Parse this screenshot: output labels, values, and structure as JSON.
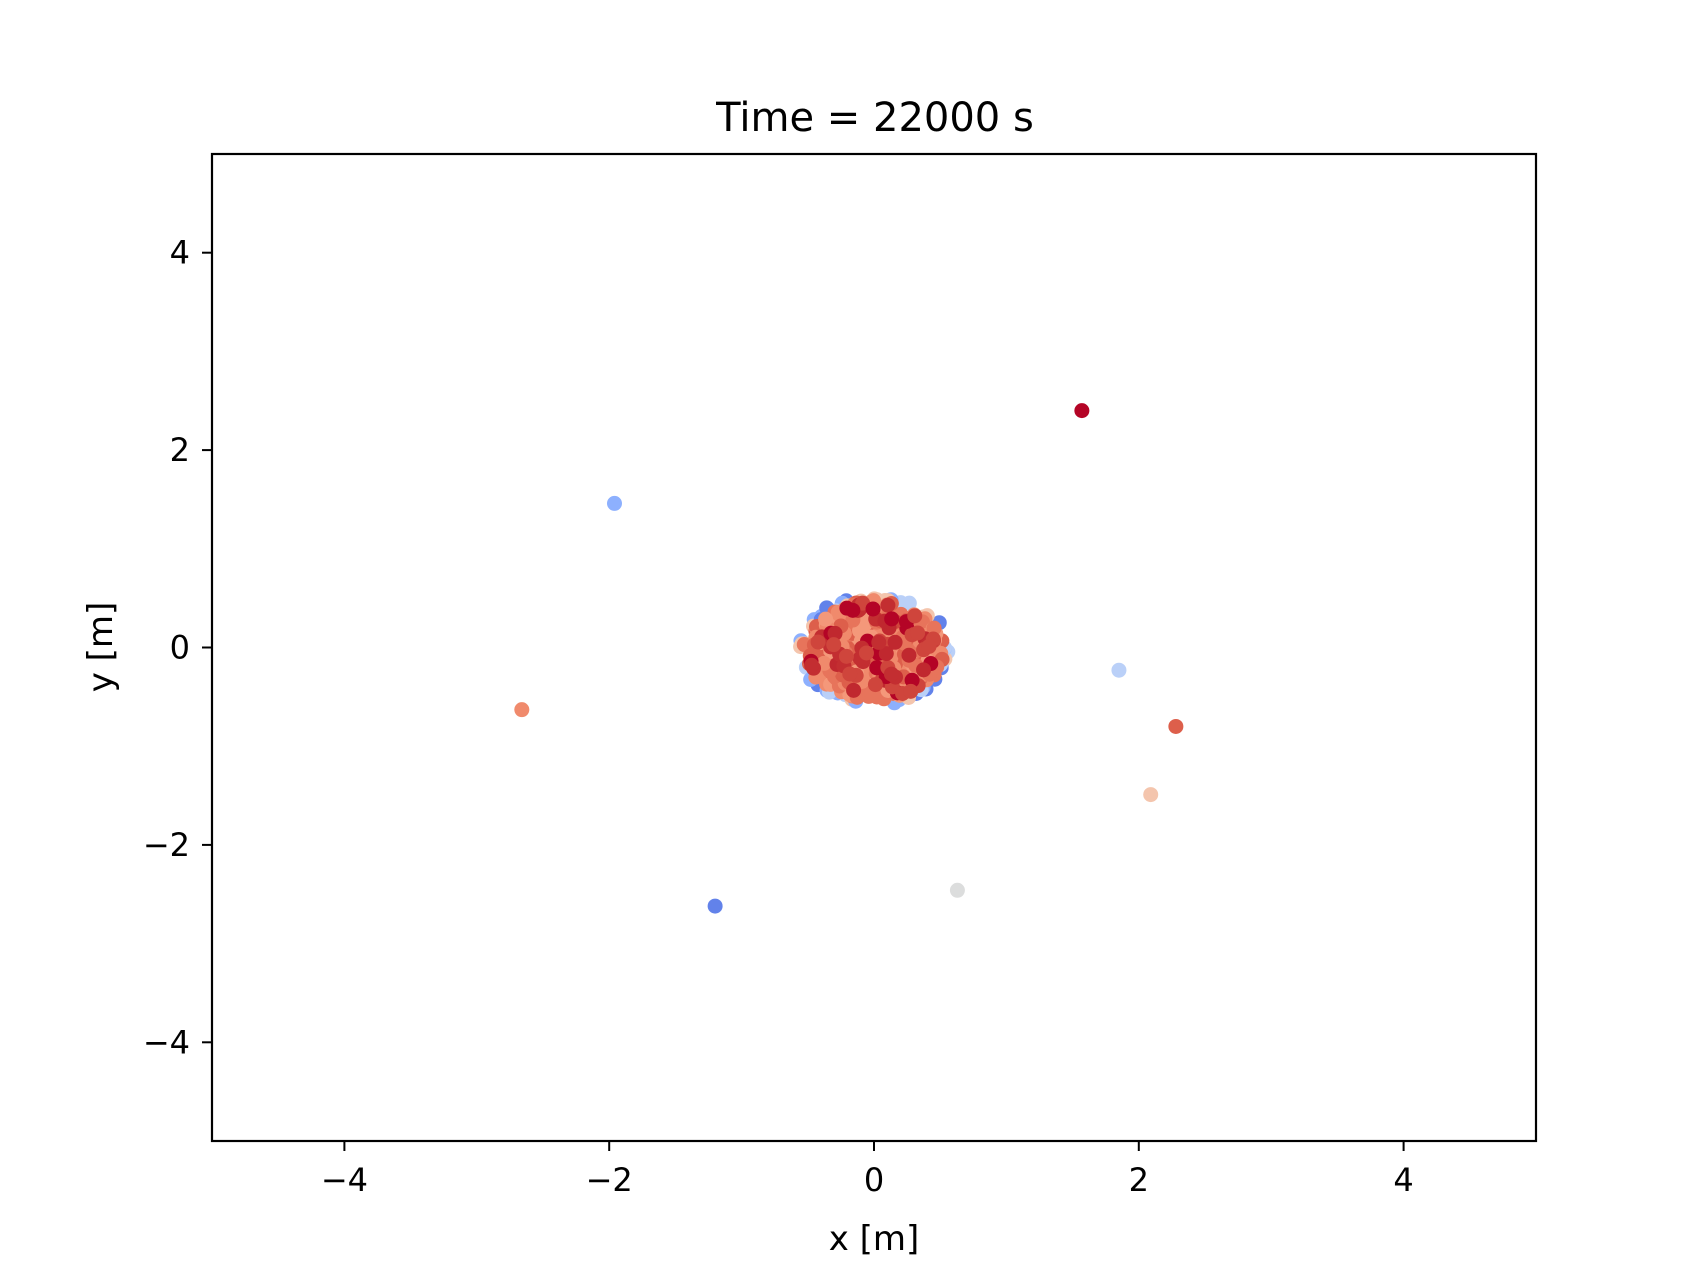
{
  "chart_data": {
    "type": "scatter",
    "title": "Time = 22000 s",
    "xlabel": "x [m]",
    "ylabel": "y [m]",
    "xlim": [
      -5,
      5
    ],
    "ylim": [
      -5,
      5
    ],
    "grid": false,
    "legend": "none",
    "x_ticks": [
      -4,
      -2,
      0,
      2,
      4
    ],
    "x_tick_labels": [
      "−4",
      "−2",
      "0",
      "2",
      "4"
    ],
    "y_ticks": [
      -4,
      -2,
      0,
      2,
      4
    ],
    "y_tick_labels": [
      "−4",
      "−2",
      "0",
      "2",
      "4"
    ],
    "colormap": "coolwarm",
    "outliers": [
      {
        "x": 1.57,
        "y": 2.4,
        "color": "#b40426"
      },
      {
        "x": -1.96,
        "y": 1.46,
        "color": "#8db0fe"
      },
      {
        "x": -2.66,
        "y": -0.63,
        "color": "#f08a6c"
      },
      {
        "x": 1.85,
        "y": -0.23,
        "color": "#bad0f8"
      },
      {
        "x": 2.28,
        "y": -0.8,
        "color": "#dd5f4b"
      },
      {
        "x": 2.09,
        "y": -1.49,
        "color": "#f4c5ad"
      },
      {
        "x": 0.63,
        "y": -2.46,
        "color": "#dcdddd"
      },
      {
        "x": -1.2,
        "y": -2.62,
        "color": "#6282ea"
      }
    ],
    "cluster": {
      "center": [
        0.0,
        -0.03
      ],
      "radius_x": 0.58,
      "radius_y": 0.55,
      "count": 300,
      "edge_colors": [
        "#6282ea",
        "#8db0fe",
        "#bad0f8",
        "#f4c5ad"
      ],
      "body_colors": [
        "#f4987a",
        "#f08a6c",
        "#e7745b",
        "#dd5f4b",
        "#f08a6c",
        "#e7745b"
      ],
      "core_colors": [
        "#cf453c",
        "#c0282f",
        "#b40426",
        "#c32e31"
      ]
    }
  }
}
